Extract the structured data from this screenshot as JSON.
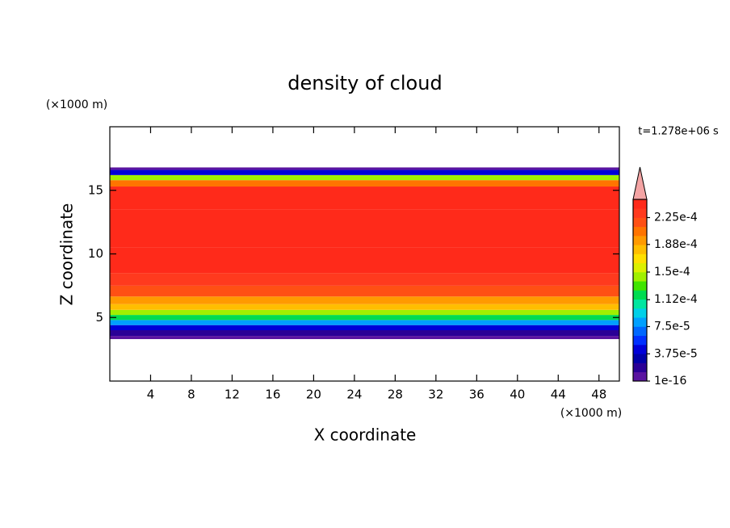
{
  "chart_data": {
    "type": "contour",
    "title": "density of cloud",
    "x_label": "X coordinate",
    "y_label": "Z coordinate",
    "x_unit": "(×1000 m)",
    "y_unit": "(×1000 m)",
    "time_label": "t=1.278e+06 s",
    "xlim": [
      0,
      50
    ],
    "ylim": [
      0,
      20
    ],
    "xticks": [
      4,
      8,
      12,
      16,
      20,
      24,
      28,
      32,
      36,
      40,
      44,
      48
    ],
    "yticks": [
      5,
      10,
      15
    ],
    "field": {
      "z": [
        3.3,
        3.8,
        4.2,
        4.6,
        5.0,
        5.4,
        5.8,
        6.3,
        7.0,
        8.0,
        9.0,
        12.0,
        15.0,
        15.6,
        16.0,
        16.4,
        16.8
      ],
      "values": [
        1e-16,
        2e-05,
        5e-05,
        8e-05,
        0.000115,
        0.00015,
        0.00018,
        0.0002,
        0.000215,
        0.00023,
        0.000242,
        0.000245,
        0.00024,
        0.00021,
        0.00014,
        5e-05,
        1e-16
      ]
    },
    "colorbar": {
      "clim": [
        1e-16,
        0.00025
      ],
      "colors": [
        "#5a14a0",
        "#2a0096",
        "#0000a8",
        "#0000d8",
        "#0030ff",
        "#0068ff",
        "#00a0ff",
        "#00d0e8",
        "#00e6a0",
        "#00dc50",
        "#40e400",
        "#a0f000",
        "#dcf000",
        "#ffe000",
        "#ffbe00",
        "#ff9a00",
        "#ff7400",
        "#ff5014",
        "#ff3a1e",
        "#ff2a1a"
      ],
      "extend_color": "#f4a4a4",
      "ticks": [
        {
          "value": 1e-16,
          "label": "1e-16"
        },
        {
          "value": 3.75e-05,
          "label": "3.75e-5"
        },
        {
          "value": 7.5e-05,
          "label": "7.5e-5"
        },
        {
          "value": 0.000112,
          "label": "1.12e-4"
        },
        {
          "value": 0.00015,
          "label": "1.5e-4"
        },
        {
          "value": 0.000188,
          "label": "1.88e-4"
        },
        {
          "value": 0.000225,
          "label": "2.25e-4"
        }
      ]
    }
  }
}
